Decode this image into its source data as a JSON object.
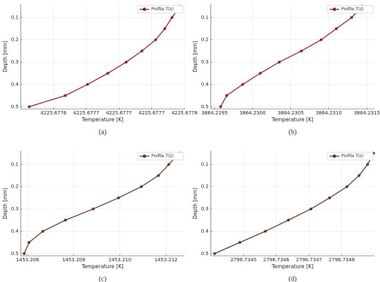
{
  "chart_data": [
    {
      "type": "line",
      "caption": "(a)",
      "xlabel": "Temperature [K]",
      "ylabel": "Depth [mm]",
      "x": [
        4225.677793,
        4225.677781,
        4225.67777,
        4225.677756,
        4225.677735,
        4225.677711,
        4225.677683,
        4225.677652,
        4225.677618,
        4225.677563
      ],
      "series": [
        {
          "name": "Profile T(z)",
          "color": "#9b1b1b",
          "values": [
            0.05,
            0.1,
            0.15,
            0.2,
            0.25,
            0.3,
            0.35,
            0.4,
            0.45,
            0.5
          ]
        }
      ],
      "xlim": [
        4225.67755,
        4225.6778
      ],
      "xticks": [
        4225.6776,
        {
          "value": 4225.67765,
          "label": "4225.6777"
        },
        4225.6777,
        {
          "value": 4225.67775,
          "label": "4225.6777"
        },
        4225.6778
      ],
      "ylim": [
        0.04,
        0.51
      ],
      "yticks": [
        0.1,
        0.2,
        0.3,
        0.4,
        0.5
      ],
      "y_inverted": true,
      "grid": true,
      "legend": "top right"
    },
    {
      "type": "line",
      "caption": "(b)",
      "xlabel": "Temperature [K]",
      "ylabel": "Depth [mm]",
      "x": [
        3864.23144,
        3864.2313,
        3864.2311,
        3864.2309,
        3864.23064,
        3864.23035,
        3864.2301,
        3864.22987,
        3864.22966,
        3864.22958
      ],
      "series": [
        {
          "name": "Profile T(z)",
          "color": "#9b1b1b",
          "values": [
            0.05,
            0.1,
            0.15,
            0.2,
            0.25,
            0.3,
            0.35,
            0.4,
            0.45,
            0.5
          ]
        }
      ],
      "xlim": [
        3864.22945,
        3864.2316
      ],
      "xticks": [
        3864.2295,
        {
          "value": 3864.23,
          "label": "3864.2300"
        },
        3864.2305,
        {
          "value": 3864.231,
          "label": "3864.2310"
        },
        3864.2315
      ],
      "ylim": [
        0.04,
        0.51
      ],
      "yticks": [
        0.1,
        0.2,
        0.3,
        0.4,
        0.5
      ],
      "y_inverted": true,
      "grid": true,
      "legend": "top right"
    },
    {
      "type": "line",
      "caption": "(c)",
      "xlabel": "Temperature [K]",
      "ylabel": "Depth [mm]",
      "x": [
        1453.21257,
        1453.21212,
        1453.21167,
        1453.21093,
        1453.20994,
        1453.20884,
        1453.20764,
        1453.20666,
        1453.20606,
        1453.20585
      ],
      "series": [
        {
          "name": "Profile T(z)",
          "color": "#5e3420",
          "values": [
            0.05,
            0.1,
            0.15,
            0.2,
            0.25,
            0.3,
            0.35,
            0.4,
            0.45,
            0.5
          ]
        }
      ],
      "xlim": [
        1453.2057,
        1453.2128
      ],
      "xticks": [
        1453.206,
        1453.208,
        {
          "value": 1453.21,
          "label": "1453.210"
        },
        1453.212
      ],
      "ylim": [
        0.04,
        0.51
      ],
      "yticks": [
        0.1,
        0.2,
        0.3,
        0.4,
        0.5
      ],
      "y_inverted": true,
      "grid": true,
      "legend": "top right"
    },
    {
      "type": "line",
      "caption": "(d)",
      "xlabel": "Temperature [K]",
      "ylabel": "Depth [mm]",
      "x": [
        2796.734897,
        2796.734879,
        2796.734853,
        2796.734816,
        2796.734763,
        2796.734706,
        2796.734637,
        2796.734567,
        2796.734489,
        2796.734412
      ],
      "series": [
        {
          "name": "Profile T(z)",
          "color": "#5e3420",
          "values": [
            0.05,
            0.1,
            0.15,
            0.2,
            0.25,
            0.3,
            0.35,
            0.4,
            0.45,
            0.5
          ]
        }
      ],
      "xlim": [
        2796.7344,
        2796.7349
      ],
      "xticks": [
        2796.7345,
        2796.7346,
        2796.7347,
        2796.7348
      ],
      "ylim": [
        0.04,
        0.51
      ],
      "yticks": [
        0.1,
        0.2,
        0.3,
        0.4,
        0.5
      ],
      "y_inverted": true,
      "grid": true,
      "legend": "top right"
    }
  ]
}
